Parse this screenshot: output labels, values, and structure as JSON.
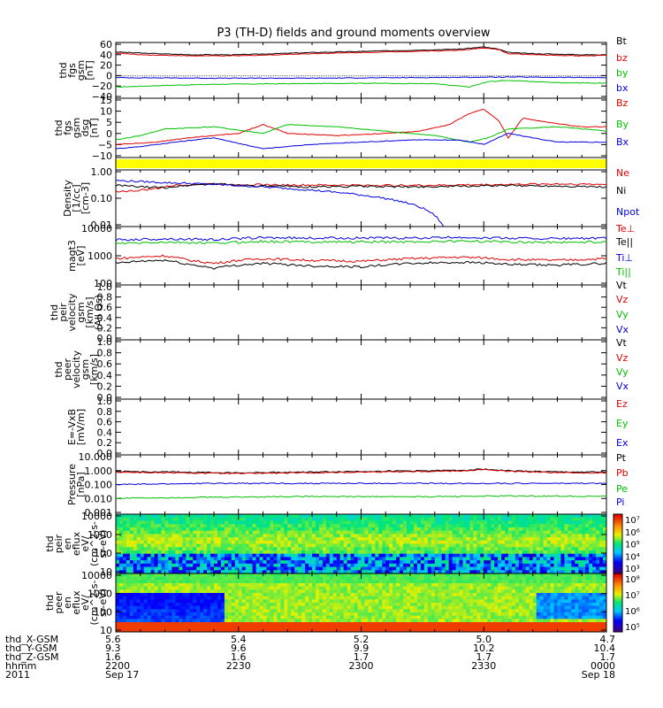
{
  "figure_title": "P3 (TH-D) fields and ground moments overview",
  "chart_data": [
    {
      "type": "line",
      "ylabel": [
        "thd",
        "fgs",
        "gsm",
        "[nT]"
      ],
      "yticks": [
        "60",
        "40",
        "20",
        "0",
        "−20",
        "−40"
      ],
      "ylim": [
        -40,
        60
      ],
      "scale": "linear",
      "legend": [
        "Bt",
        "bz",
        "by",
        "bx"
      ],
      "series": [
        {
          "name": "Bt",
          "color": "#000000",
          "x": [
            0,
            0.05,
            0.15,
            0.25,
            0.4,
            0.55,
            0.7,
            0.75,
            0.78,
            0.8,
            0.85,
            0.95,
            1
          ],
          "values": [
            43,
            41,
            38,
            38,
            42,
            45,
            48,
            52,
            48,
            42,
            40,
            38,
            38
          ]
        },
        {
          "name": "bz",
          "color": "#e00000",
          "x": [
            0,
            0.05,
            0.15,
            0.25,
            0.4,
            0.55,
            0.7,
            0.75,
            0.78,
            0.8,
            0.85,
            0.95,
            1
          ],
          "values": [
            41,
            38,
            36,
            36,
            40,
            43,
            46,
            50,
            47,
            40,
            38,
            36,
            37
          ]
        },
        {
          "name": "by",
          "color": "#00c000",
          "x": [
            0,
            0.1,
            0.2,
            0.35,
            0.5,
            0.65,
            0.72,
            0.76,
            0.8,
            0.9,
            1
          ],
          "values": [
            -20,
            -17,
            -15,
            -14,
            -13,
            -14,
            -20,
            -10,
            -8,
            -12,
            -13
          ]
        },
        {
          "name": "bx",
          "color": "#0000e0",
          "x": [
            0,
            0.2,
            0.4,
            0.6,
            0.8,
            1
          ],
          "values": [
            -3,
            -4,
            -4,
            -3,
            -2,
            -3
          ]
        }
      ]
    },
    {
      "type": "line",
      "ylabel": [
        "thd",
        "fgs",
        "gsm",
        "dsg",
        "[nT]"
      ],
      "yticks": [
        "15",
        "10",
        "5",
        "0",
        "−5",
        "−10"
      ],
      "ylim": [
        -12,
        15
      ],
      "scale": "linear",
      "legend": [
        "Bz",
        "By",
        "Bx"
      ],
      "series": [
        {
          "name": "Bz",
          "color": "#e00000",
          "x": [
            0,
            0.08,
            0.15,
            0.25,
            0.3,
            0.35,
            0.45,
            0.55,
            0.62,
            0.68,
            0.72,
            0.75,
            0.78,
            0.8,
            0.83,
            0.88,
            0.95,
            1
          ],
          "values": [
            -6,
            -5,
            -3,
            -1,
            3,
            -1,
            -2,
            -1,
            0,
            3,
            8,
            10,
            5,
            -3,
            6,
            4,
            2,
            2
          ]
        },
        {
          "name": "By",
          "color": "#00c000",
          "x": [
            0,
            0.05,
            0.1,
            0.2,
            0.3,
            0.35,
            0.45,
            0.55,
            0.65,
            0.72,
            0.76,
            0.8,
            0.9,
            1
          ],
          "values": [
            -4,
            -2,
            1,
            2,
            -1,
            3,
            2,
            0,
            -2,
            -5,
            -3,
            1,
            2,
            0
          ]
        },
        {
          "name": "Bx",
          "color": "#0000e0",
          "x": [
            0,
            0.05,
            0.12,
            0.2,
            0.3,
            0.4,
            0.5,
            0.6,
            0.7,
            0.75,
            0.8,
            0.85,
            0.9,
            1
          ],
          "values": [
            -8,
            -7,
            -5,
            -3,
            -8,
            -6,
            -5,
            -4,
            -4,
            -6,
            -1,
            -3,
            -5,
            -5
          ]
        }
      ]
    },
    {
      "type": "line",
      "ylabel": [
        "Density",
        "[1/cc]",
        "[cm-3]"
      ],
      "yticks": [
        "1.00",
        "0.10",
        "0.01"
      ],
      "ylim": [
        0.007,
        1.5
      ],
      "scale": "log",
      "legend": [
        "Ne",
        "Ni",
        "Npot"
      ],
      "series": [
        {
          "name": "Ne",
          "color": "#e00000",
          "x": [
            0,
            0.03,
            0.08,
            0.12,
            0.18,
            0.25,
            0.35,
            0.5,
            0.65,
            0.8,
            0.9,
            1
          ],
          "values": [
            0.2,
            0.2,
            0.25,
            0.35,
            0.4,
            0.38,
            0.36,
            0.35,
            0.35,
            0.38,
            0.4,
            0.38
          ]
        },
        {
          "name": "Ni",
          "color": "#000000",
          "x": [
            0,
            0.05,
            0.1,
            0.15,
            0.2,
            0.3,
            0.4,
            0.5,
            0.6,
            0.7,
            0.8,
            0.9,
            1
          ],
          "values": [
            0.35,
            0.3,
            0.28,
            0.35,
            0.4,
            0.32,
            0.3,
            0.32,
            0.3,
            0.32,
            0.34,
            0.33,
            0.3
          ]
        },
        {
          "name": "Npot",
          "color": "#0000e0",
          "x": [
            0,
            0.05,
            0.1,
            0.15,
            0.2
          ],
          "values": [
            0.55,
            0.5,
            0.45,
            0.42,
            0.38
          ]
        }
      ]
    },
    {
      "type": "line",
      "ylabel": [
        "magt3",
        "[eV]"
      ],
      "yticks": [
        "10000",
        "1000",
        "100"
      ],
      "ylim": [
        100,
        10000
      ],
      "scale": "log",
      "legend": [
        "Te⊥",
        "Te||",
        "Ti⊥",
        "Ti||"
      ],
      "series": [
        {
          "name": "Ti⊥",
          "color": "#0000e0",
          "x": [
            0,
            0.1,
            0.2,
            0.3,
            0.4,
            0.5,
            0.6,
            0.7,
            0.8,
            0.9,
            1
          ],
          "values": [
            3500,
            3800,
            3600,
            4200,
            4000,
            4100,
            4000,
            4300,
            4000,
            3900,
            4000
          ]
        },
        {
          "name": "Ti||",
          "color": "#00c000",
          "x": [
            0,
            0.1,
            0.2,
            0.3,
            0.4,
            0.5,
            0.6,
            0.7,
            0.8,
            0.9,
            1
          ],
          "values": [
            2600,
            2900,
            2700,
            3100,
            3000,
            3000,
            3000,
            3200,
            3000,
            2900,
            3000
          ]
        },
        {
          "name": "Te⊥",
          "color": "#e00000",
          "x": [
            0,
            0.05,
            0.1,
            0.15,
            0.2,
            0.25,
            0.3,
            0.4,
            0.5,
            0.6,
            0.7,
            0.75,
            0.8,
            0.9,
            1
          ],
          "values": [
            800,
            900,
            1000,
            700,
            550,
            700,
            800,
            700,
            650,
            800,
            900,
            850,
            750,
            700,
            800
          ]
        },
        {
          "name": "Te||",
          "color": "#000000",
          "x": [
            0,
            0.05,
            0.1,
            0.15,
            0.2,
            0.25,
            0.3,
            0.4,
            0.5,
            0.6,
            0.7,
            0.75,
            0.8,
            0.9,
            1
          ],
          "values": [
            550,
            650,
            700,
            500,
            380,
            480,
            550,
            450,
            420,
            550,
            600,
            580,
            500,
            480,
            550
          ]
        }
      ]
    },
    {
      "type": "line",
      "ylabel": [
        "thd",
        "peir",
        "velocity",
        "gsm",
        "[km/s]",
        "(All Qs)"
      ],
      "yticks": [
        "1.0",
        "0.8",
        "0.6",
        "0.4",
        "0.2",
        "0.0"
      ],
      "ylim": [
        0,
        1
      ],
      "scale": "linear",
      "legend": [
        "Vt",
        "Vz",
        "Vy",
        "Vx"
      ],
      "series": []
    },
    {
      "type": "line",
      "ylabel": [
        "thd",
        "peer",
        "velocity",
        "gsm",
        "[km/s]"
      ],
      "yticks": [
        "1.0",
        "0.8",
        "0.6",
        "0.4",
        "0.2",
        "0.0"
      ],
      "ylim": [
        0,
        1
      ],
      "scale": "linear",
      "legend": [
        "Vt",
        "Vz",
        "Vy",
        "Vx"
      ],
      "series": []
    },
    {
      "type": "line",
      "ylabel": [
        "E=-VxB",
        "[mV/m]"
      ],
      "yticks": [
        "1.0",
        "0.8",
        "0.6",
        "0.4",
        "0.2",
        "0.0"
      ],
      "ylim": [
        0,
        1
      ],
      "scale": "linear",
      "legend": [
        "Ez",
        "Ey",
        "Ex"
      ],
      "series": []
    },
    {
      "type": "line",
      "ylabel": [
        "Pressure",
        "[nPa]"
      ],
      "yticks": [
        "10.000",
        "1.000",
        "0.100",
        "0.010",
        "0.001"
      ],
      "ylim": [
        0.001,
        10
      ],
      "scale": "log",
      "legend": [
        "Pt",
        "Pb",
        "Pe",
        "Pi"
      ],
      "series": [
        {
          "name": "Pt",
          "color": "#000000",
          "x": [
            0,
            0.1,
            0.25,
            0.4,
            0.55,
            0.7,
            0.75,
            0.8,
            0.9,
            1
          ],
          "values": [
            0.75,
            0.7,
            0.62,
            0.7,
            0.8,
            0.9,
            1.1,
            0.85,
            0.7,
            0.7
          ]
        },
        {
          "name": "Pb",
          "color": "#e00000",
          "x": [
            0,
            0.1,
            0.25,
            0.4,
            0.55,
            0.7,
            0.75,
            0.8,
            0.9,
            1
          ],
          "values": [
            0.68,
            0.62,
            0.55,
            0.62,
            0.72,
            0.82,
            1.0,
            0.78,
            0.62,
            0.62
          ]
        },
        {
          "name": "Pe",
          "color": "#00c000",
          "x": [
            0,
            0.2,
            0.4,
            0.6,
            0.8,
            1
          ],
          "values": [
            0.012,
            0.014,
            0.016,
            0.015,
            0.017,
            0.016
          ]
        },
        {
          "name": "Pi",
          "color": "#0000e0",
          "x": [
            0,
            0.2,
            0.4,
            0.6,
            0.8,
            1
          ],
          "values": [
            0.1,
            0.12,
            0.12,
            0.12,
            0.12,
            0.12
          ]
        }
      ]
    },
    {
      "type": "heatmap",
      "ylabel": [
        "thd",
        "peir",
        "en",
        "eflux",
        "eV/",
        "(cm^2-s-",
        "sr-eV)"
      ],
      "yticks": [
        "10000",
        "1000",
        "100",
        "10"
      ],
      "colorbar_ticks": [
        "10⁷",
        "10⁶",
        "10⁵",
        "10⁴",
        "10³"
      ],
      "colorbar_range": [
        3,
        7
      ]
    },
    {
      "type": "heatmap",
      "ylabel": [
        "thd",
        "peer",
        "en",
        "eflux",
        "eV/",
        "(cm^2-s-",
        "sr-eV)"
      ],
      "yticks": [
        "10000",
        "1000",
        "100",
        "10"
      ],
      "colorbar_ticks": [
        "10⁸",
        "10⁷",
        "10⁶",
        "10⁵"
      ],
      "colorbar_range": [
        4.5,
        8.3
      ]
    }
  ],
  "footer": {
    "rows": [
      {
        "label": "thd_X-GSM",
        "values": [
          "5.6",
          "5.4",
          "5.2",
          "5.0",
          "4.7"
        ]
      },
      {
        "label": "thd_Y-GSM",
        "values": [
          "9.3",
          "9.6",
          "9.9",
          "10.2",
          "10.4"
        ]
      },
      {
        "label": "thd_Z-GSM",
        "values": [
          "1.6",
          "1.6",
          "1.7",
          "1.7",
          "1.7"
        ]
      },
      {
        "label": "hhmm",
        "values": [
          "2200",
          "2230",
          "2300",
          "2330",
          "0000"
        ]
      },
      {
        "label": "2011",
        "values": [
          "Sep 17",
          "",
          "",
          "",
          "Sep 18"
        ]
      }
    ]
  },
  "colors": {
    "frame": "#000000",
    "yellow_band": "#ffff00"
  }
}
